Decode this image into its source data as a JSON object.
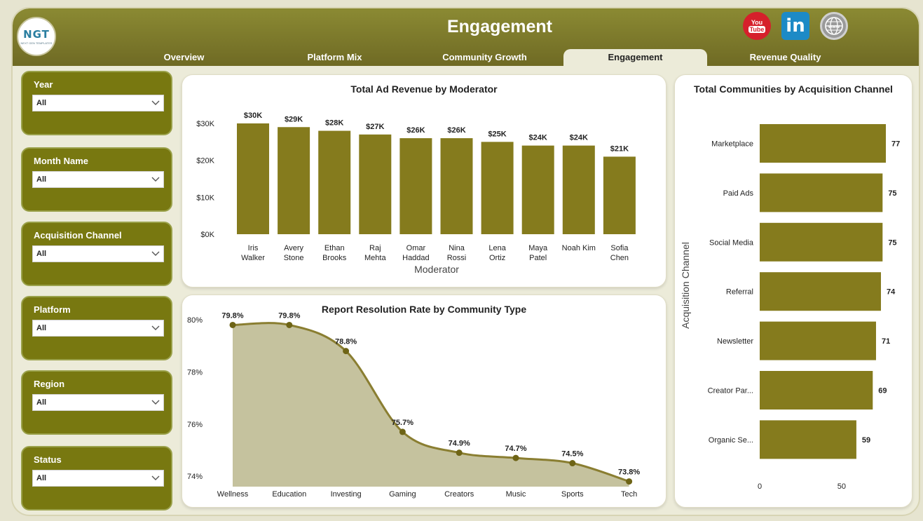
{
  "header": {
    "logo_text": "NGT",
    "logo_subtext": "NEXT GEN TEMPLATES",
    "title": "Engagement",
    "social": {
      "youtube_top": "You",
      "youtube_bottom": "Tube",
      "linkedin": "in",
      "web": "www"
    }
  },
  "tabs": [
    {
      "label": "Overview",
      "active": false
    },
    {
      "label": "Platform Mix",
      "active": false
    },
    {
      "label": "Community Growth",
      "active": false
    },
    {
      "label": "Engagement",
      "active": true
    },
    {
      "label": "Revenue Quality",
      "active": false
    }
  ],
  "filters": [
    {
      "label": "Year",
      "value": "All"
    },
    {
      "label": "Month Name",
      "value": "All"
    },
    {
      "label": "Acquisition Channel",
      "value": "All"
    },
    {
      "label": "Platform",
      "value": "All"
    },
    {
      "label": "Region",
      "value": "All"
    },
    {
      "label": "Status",
      "value": "All"
    }
  ],
  "colors": {
    "accent": "#857b1d",
    "area_fill": "#c5c29e",
    "line": "#8a7e31",
    "point": "#6e6416"
  },
  "chart_data": [
    {
      "type": "bar",
      "title": "Total Ad Revenue by Moderator",
      "xlabel": "Moderator",
      "ylabel": "",
      "categories": [
        [
          "Iris",
          "Walker"
        ],
        [
          "Avery",
          "Stone"
        ],
        [
          "Ethan",
          "Brooks"
        ],
        [
          "Raj",
          "Mehta"
        ],
        [
          "Omar",
          "Haddad"
        ],
        [
          "Nina",
          "Rossi"
        ],
        [
          "Lena",
          "Ortiz"
        ],
        [
          "Maya",
          "Patel"
        ],
        [
          "Noah Kim"
        ],
        [
          "Sofia",
          "Chen"
        ]
      ],
      "values": [
        30000,
        29000,
        28000,
        27000,
        26000,
        26000,
        25000,
        24000,
        24000,
        21000
      ],
      "data_labels": [
        "$30K",
        "$29K",
        "$28K",
        "$27K",
        "$26K",
        "$26K",
        "$25K",
        "$24K",
        "$24K",
        "$21K"
      ],
      "y_ticks": [
        0,
        10000,
        20000,
        30000
      ],
      "y_tick_labels": [
        "$0K",
        "$10K",
        "$20K",
        "$30K"
      ],
      "ylim": [
        0,
        30000
      ]
    },
    {
      "type": "area",
      "title": "Report Resolution Rate by Community Type",
      "xlabel": "",
      "ylabel": "",
      "categories": [
        "Wellness",
        "Education",
        "Investing",
        "Gaming",
        "Creators",
        "Music",
        "Sports",
        "Tech"
      ],
      "values": [
        79.8,
        79.8,
        78.8,
        75.7,
        74.9,
        74.7,
        74.5,
        73.8
      ],
      "data_labels": [
        "79.8%",
        "79.8%",
        "78.8%",
        "75.7%",
        "74.9%",
        "74.7%",
        "74.5%",
        "73.8%"
      ],
      "y_ticks": [
        74,
        76,
        78,
        80
      ],
      "y_tick_labels": [
        "74%",
        "76%",
        "78%",
        "80%"
      ],
      "ylim": [
        73.6,
        80
      ]
    },
    {
      "type": "bar",
      "orientation": "horizontal",
      "title": "Total Communities by Acquisition Channel",
      "xlabel": "",
      "ylabel": "Acquisition Channel",
      "categories": [
        "Marketplace",
        "Paid Ads",
        "Social Media",
        "Referral",
        "Newsletter",
        "Creator Par...",
        "Organic Se..."
      ],
      "values": [
        77,
        75,
        75,
        74,
        71,
        69,
        59
      ],
      "data_labels": [
        "77",
        "75",
        "75",
        "74",
        "71",
        "69",
        "59"
      ],
      "x_ticks": [
        0,
        50
      ],
      "x_tick_labels": [
        "0",
        "50"
      ],
      "xlim": [
        0,
        77
      ]
    }
  ]
}
